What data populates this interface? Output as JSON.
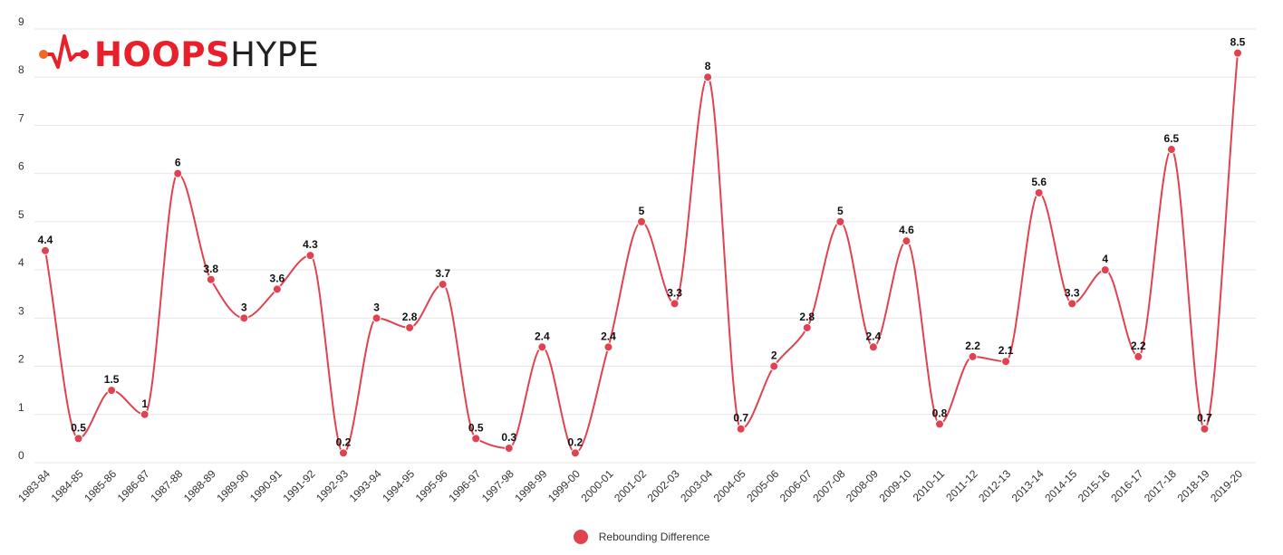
{
  "brand": {
    "name_part1": "HOOPS",
    "name_part2": "HYPE",
    "colors": {
      "red": "#e8202a",
      "orange": "#f26a21",
      "dark": "#222222"
    }
  },
  "colors": {
    "series": "#e0434f",
    "label": "#111111",
    "grid": "#e6e6e6",
    "axis_text": "#333333"
  },
  "chart_data": {
    "type": "line",
    "smooth": true,
    "categories": [
      "1983-84",
      "1984-85",
      "1985-86",
      "1986-87",
      "1987-88",
      "1988-89",
      "1989-90",
      "1990-91",
      "1991-92",
      "1992-93",
      "1993-94",
      "1994-95",
      "1995-96",
      "1996-97",
      "1997-98",
      "1998-99",
      "1999-00",
      "2000-01",
      "2001-02",
      "2002-03",
      "2003-04",
      "2004-05",
      "2005-06",
      "2006-07",
      "2007-08",
      "2008-09",
      "2009-10",
      "2010-11",
      "2011-12",
      "2012-13",
      "2013-14",
      "2014-15",
      "2015-16",
      "2016-17",
      "2017-18",
      "2018-19",
      "2019-20"
    ],
    "series": [
      {
        "name": "Rebounding Difference",
        "values": [
          4.4,
          0.5,
          1.5,
          1,
          6,
          3.8,
          3,
          3.6,
          4.3,
          0.2,
          3,
          2.8,
          3.7,
          0.5,
          0.3,
          2.4,
          0.2,
          2.4,
          5,
          3.3,
          8,
          0.7,
          2,
          2.8,
          5,
          2.4,
          4.6,
          0.8,
          2.2,
          2.1,
          5.6,
          3.3,
          4,
          2.2,
          6.5,
          0.7,
          8.5
        ],
        "labels": [
          "4.4",
          "0.5",
          "1.5",
          "1",
          "6",
          "3.8",
          "3",
          "3.6",
          "4.3",
          "0.2",
          "3",
          "2.8",
          "3.7",
          "0.5",
          "0.3",
          "2.4",
          "0.2",
          "2.4",
          "5",
          "3.3",
          "8",
          "0.7",
          "2",
          "2.8",
          "5",
          "2.4",
          "4.6",
          "0.8",
          "2.2",
          "2.1",
          "5.6",
          "3.3",
          "4",
          "2.2",
          "6.5",
          "0.7",
          "8.5"
        ]
      }
    ],
    "ylim": [
      0,
      9
    ],
    "yticks": [
      "0",
      "1",
      "2",
      "3",
      "4",
      "5",
      "6",
      "7",
      "8",
      "9"
    ],
    "grid": true,
    "legend_position": "bottom-center",
    "title": "",
    "xlabel": "",
    "ylabel": ""
  }
}
